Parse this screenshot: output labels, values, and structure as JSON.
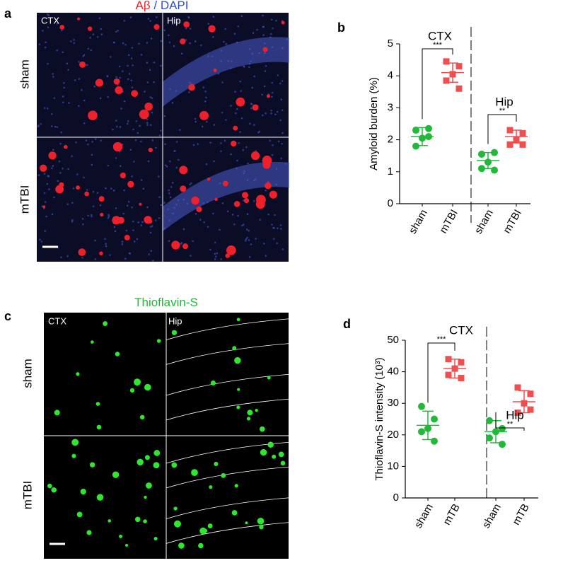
{
  "panels": [
    {
      "letter": "a",
      "title": [
        "Aβ",
        "/",
        "DAPI"
      ],
      "regions": [
        "CTX",
        "Hip"
      ],
      "conditions": [
        "sham",
        "mTBI"
      ]
    },
    {
      "letter": "c",
      "title": [
        "Thioflavin-S"
      ],
      "regions": [
        "CTX",
        "Hip"
      ],
      "conditions": [
        "sham",
        "mTBI"
      ]
    }
  ],
  "chart_data": [
    {
      "type": "dot",
      "letter": "b",
      "ylabel": "Amyloid burden (%)",
      "categories": [
        "sham",
        "mTBI",
        "sham",
        "mTBI"
      ],
      "values": [
        [
          2.3,
          2.35,
          2.05,
          1.8,
          2.1
        ],
        [
          4.45,
          4.3,
          4.05,
          3.85,
          3.6
        ],
        [
          1.55,
          1.6,
          1.3,
          1.1,
          1.05
        ],
        [
          2.3,
          2.2,
          2.0,
          1.85,
          1.85
        ]
      ],
      "means": [
        2.1,
        4.1,
        1.35,
        2.1
      ],
      "sds": [
        0.28,
        0.3,
        0.25,
        0.2
      ],
      "colors": [
        "#22b83a",
        "#ef4f4f",
        "#22b83a",
        "#ef4f4f"
      ],
      "markers": [
        "circle",
        "square",
        "circle",
        "square"
      ],
      "group_labels": [
        "CTX",
        "Hip"
      ],
      "significance": [
        "***",
        "**"
      ],
      "ylim": [
        0,
        5
      ],
      "yticks": [
        0,
        1,
        2,
        3,
        4,
        5
      ]
    },
    {
      "type": "dot",
      "letter": "d",
      "ylabel": "Thioflavin-S intensity (10³)",
      "categories": [
        "sham",
        "mTB",
        "sham",
        "mTB"
      ],
      "values": [
        [
          29,
          25,
          22,
          21,
          18
        ],
        [
          44,
          43,
          41,
          39,
          38
        ],
        [
          24.5,
          22,
          21,
          19,
          17
        ],
        [
          35,
          33,
          30,
          27,
          28
        ]
      ],
      "means": [
        23,
        41,
        21,
        30.5
      ],
      "sds": [
        4.5,
        3,
        3.5,
        3.5
      ],
      "colors": [
        "#22b83a",
        "#ef4f4f",
        "#22b83a",
        "#ef4f4f"
      ],
      "markers": [
        "circle",
        "square",
        "circle",
        "square"
      ],
      "group_labels": [
        "CTX",
        "Hip"
      ],
      "significance": [
        "***",
        "**"
      ],
      "ylim": [
        0,
        50
      ],
      "yticks": [
        0,
        10,
        20,
        30,
        40,
        50
      ]
    }
  ]
}
